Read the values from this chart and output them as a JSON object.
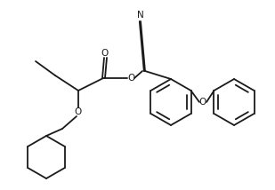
{
  "background_color": "#ffffff",
  "line_color": "#1a1a1a",
  "line_width": 1.3,
  "font_size": 7.5,
  "figsize": [
    3.09,
    2.14
  ],
  "dpi": 100,
  "xlim": [
    0,
    309
  ],
  "ylim": [
    0,
    214
  ]
}
